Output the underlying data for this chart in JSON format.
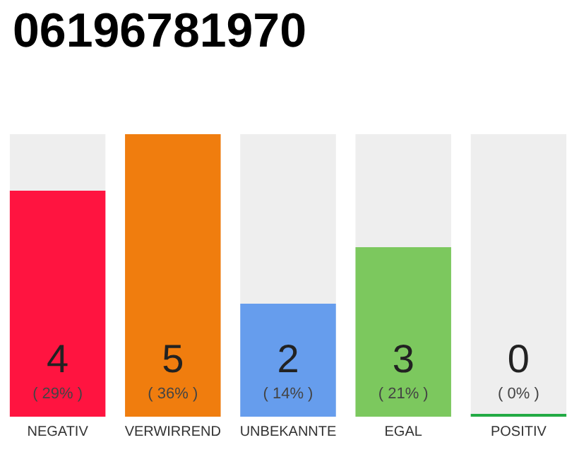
{
  "chart_data": {
    "type": "bar",
    "title": "06196781970",
    "categories": [
      "NEGATIV",
      "VERWIRREND",
      "UNBEKANNTE",
      "EGAL",
      "POSITIV"
    ],
    "values": [
      4,
      5,
      2,
      3,
      0
    ],
    "colors": [
      "#ff1440",
      "#f07d0e",
      "#669ded",
      "#7cc85e",
      "#22aa44"
    ],
    "value_labels": [
      "4\n( 29% )",
      "5\n( 36% )",
      "2\n( 14% )",
      "3\n( 21% )",
      "0\n( 0% )"
    ]
  }
}
